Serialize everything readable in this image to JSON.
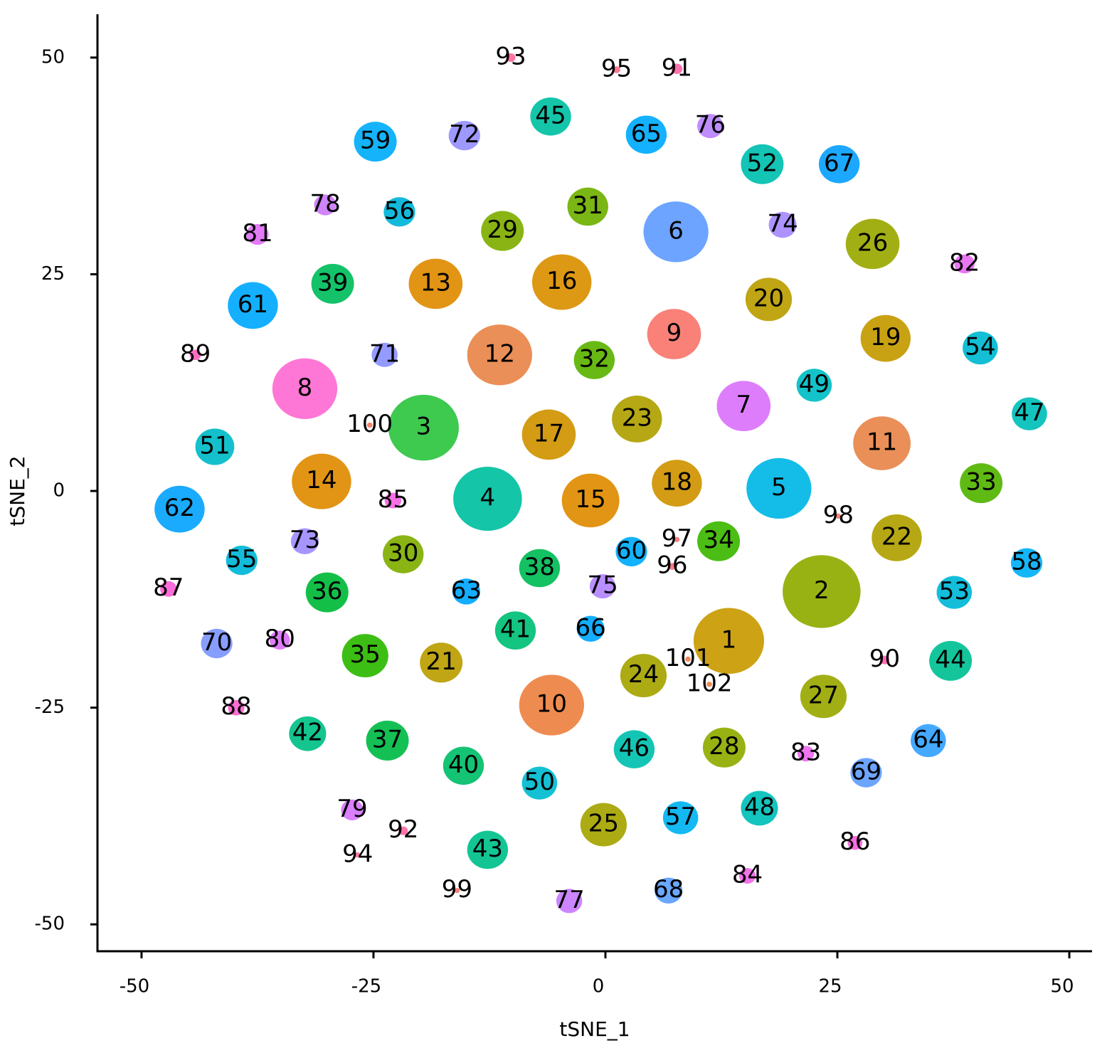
{
  "chart_data": {
    "type": "scatter",
    "x_label": "tSNE_1",
    "y_label": "tSNE_2",
    "xlim": [
      -54.75,
      52.45
    ],
    "ylim": [
      -53.1,
      55
    ],
    "xticks": [
      -50,
      -25,
      0,
      25,
      50
    ],
    "yticks": [
      -50,
      -25,
      0,
      25,
      50
    ],
    "series": [
      {
        "name": "1",
        "color": "#c99a00",
        "x": 13.3,
        "y": -17.3,
        "size": 3.8
      },
      {
        "name": "2",
        "color": "#8fab00",
        "x": 23.3,
        "y": -11.6,
        "size": 4.2
      },
      {
        "name": "3",
        "color": "#2ec440",
        "x": -19.6,
        "y": 7.3,
        "size": 3.8
      },
      {
        "name": "4",
        "color": "#00c0a0",
        "x": -12.7,
        "y": -0.9,
        "size": 3.7
      },
      {
        "name": "5",
        "color": "#00b7e5",
        "x": 18.7,
        "y": 0.3,
        "size": 3.5
      },
      {
        "name": "6",
        "color": "#619cff",
        "x": 7.6,
        "y": 29.9,
        "size": 3.5
      },
      {
        "name": "7",
        "color": "#db72fb",
        "x": 14.9,
        "y": 9.8,
        "size": 2.9
      },
      {
        "name": "8",
        "color": "#ff6bd2",
        "x": -32.4,
        "y": 11.8,
        "size": 3.5
      },
      {
        "name": "9",
        "color": "#f8766d",
        "x": 7.4,
        "y": 18.1,
        "size": 2.9
      },
      {
        "name": "10",
        "color": "#ed8141",
        "x": -5.8,
        "y": -24.7,
        "size": 3.5
      },
      {
        "name": "11",
        "color": "#e8854a",
        "x": 29.8,
        "y": 5.5,
        "size": 3.1
      },
      {
        "name": "12",
        "color": "#e8854a",
        "x": -11.4,
        "y": 15.7,
        "size": 3.5
      },
      {
        "name": "13",
        "color": "#e08b00",
        "x": -18.3,
        "y": 23.9,
        "size": 2.9
      },
      {
        "name": "14",
        "color": "#e08b00",
        "x": -30.6,
        "y": 1.1,
        "size": 3.2
      },
      {
        "name": "15",
        "color": "#e08b00",
        "x": -1.6,
        "y": -1.1,
        "size": 3.1
      },
      {
        "name": "16",
        "color": "#da8f00",
        "x": -4.7,
        "y": 24.1,
        "size": 3.2
      },
      {
        "name": "17",
        "color": "#cf9400",
        "x": -6.1,
        "y": 6.5,
        "size": 2.9
      },
      {
        "name": "18",
        "color": "#cf9400",
        "x": 7.7,
        "y": 0.9,
        "size": 2.7
      },
      {
        "name": "19",
        "color": "#c49a00",
        "x": 30.2,
        "y": 17.6,
        "size": 2.7
      },
      {
        "name": "20",
        "color": "#bb9d00",
        "x": 17.6,
        "y": 22.1,
        "size": 2.5
      },
      {
        "name": "21",
        "color": "#bb9d00",
        "x": -17.7,
        "y": -19.8,
        "size": 2.3
      },
      {
        "name": "22",
        "color": "#b0a100",
        "x": 31.4,
        "y": -5.4,
        "size": 2.7
      },
      {
        "name": "23",
        "color": "#b0a100",
        "x": 3.4,
        "y": 8.3,
        "size": 2.7
      },
      {
        "name": "24",
        "color": "#a5a400",
        "x": 4.1,
        "y": -21.3,
        "size": 2.5
      },
      {
        "name": "25",
        "color": "#a5a400",
        "x": -0.2,
        "y": -38.5,
        "size": 2.5
      },
      {
        "name": "26",
        "color": "#9aa800",
        "x": 28.8,
        "y": 28.5,
        "size": 2.9
      },
      {
        "name": "27",
        "color": "#9aa800",
        "x": 23.5,
        "y": -23.7,
        "size": 2.5
      },
      {
        "name": "28",
        "color": "#8fab00",
        "x": 12.8,
        "y": -29.6,
        "size": 2.3
      },
      {
        "name": "29",
        "color": "#7fae00",
        "x": -11.1,
        "y": 30.0,
        "size": 2.3
      },
      {
        "name": "30",
        "color": "#7fae00",
        "x": -21.8,
        "y": -7.3,
        "size": 2.2
      },
      {
        "name": "31",
        "color": "#6fb000",
        "x": -1.9,
        "y": 32.8,
        "size": 2.2
      },
      {
        "name": "32",
        "color": "#5bb300",
        "x": -1.2,
        "y": 15.1,
        "size": 2.2
      },
      {
        "name": "33",
        "color": "#53b400",
        "x": 40.5,
        "y": 0.9,
        "size": 2.3
      },
      {
        "name": "34",
        "color": "#3cb700",
        "x": 12.2,
        "y": -5.8,
        "size": 2.3
      },
      {
        "name": "35",
        "color": "#2cb900",
        "x": -25.9,
        "y": -19.0,
        "size": 2.5
      },
      {
        "name": "36",
        "color": "#00ba38",
        "x": -30.0,
        "y": -11.7,
        "size": 2.3
      },
      {
        "name": "37",
        "color": "#00bb45",
        "x": -23.5,
        "y": -28.8,
        "size": 2.3
      },
      {
        "name": "38",
        "color": "#00bc56",
        "x": -7.1,
        "y": -8.9,
        "size": 2.2
      },
      {
        "name": "39",
        "color": "#00bd5c",
        "x": -29.4,
        "y": 23.9,
        "size": 2.3
      },
      {
        "name": "40",
        "color": "#00be67",
        "x": -15.3,
        "y": -31.7,
        "size": 2.2
      },
      {
        "name": "41",
        "color": "#00bf76",
        "x": -9.7,
        "y": -16.1,
        "size": 2.2
      },
      {
        "name": "42",
        "color": "#00c086",
        "x": -32.1,
        "y": -28.0,
        "size": 2.0
      },
      {
        "name": "43",
        "color": "#00c08b",
        "x": -12.7,
        "y": -41.4,
        "size": 2.2
      },
      {
        "name": "44",
        "color": "#00c094",
        "x": 37.2,
        "y": -19.6,
        "size": 2.3
      },
      {
        "name": "45",
        "color": "#00c0a3",
        "x": -5.9,
        "y": 43.2,
        "size": 2.2
      },
      {
        "name": "46",
        "color": "#00c0af",
        "x": 3.1,
        "y": -29.8,
        "size": 2.2
      },
      {
        "name": "47",
        "color": "#00bfb8",
        "x": 45.7,
        "y": 8.9,
        "size": 1.9
      },
      {
        "name": "48",
        "color": "#00bfb8",
        "x": 16.6,
        "y": -36.6,
        "size": 2.0
      },
      {
        "name": "49",
        "color": "#00bdc4",
        "x": 22.5,
        "y": 12.2,
        "size": 1.9
      },
      {
        "name": "50",
        "color": "#00bcd0",
        "x": -7.1,
        "y": -33.7,
        "size": 1.9
      },
      {
        "name": "51",
        "color": "#00bbc8",
        "x": -42.1,
        "y": 5.1,
        "size": 2.1
      },
      {
        "name": "52",
        "color": "#00bfaf",
        "x": 16.9,
        "y": 37.7,
        "size": 2.3
      },
      {
        "name": "53",
        "color": "#00b8d8",
        "x": 37.6,
        "y": -11.7,
        "size": 1.9
      },
      {
        "name": "54",
        "color": "#00b9d0",
        "x": 40.4,
        "y": 16.5,
        "size": 1.9
      },
      {
        "name": "55",
        "color": "#00b6d8",
        "x": -39.2,
        "y": -8.0,
        "size": 1.7
      },
      {
        "name": "56",
        "color": "#00b4d8",
        "x": -22.2,
        "y": 32.2,
        "size": 1.7
      },
      {
        "name": "57",
        "color": "#00b3f2",
        "x": 8.1,
        "y": -37.7,
        "size": 1.9
      },
      {
        "name": "58",
        "color": "#00b0f6",
        "x": 45.4,
        "y": -8.3,
        "size": 1.7
      },
      {
        "name": "59",
        "color": "#00adfa",
        "x": -24.8,
        "y": 40.3,
        "size": 2.3
      },
      {
        "name": "60",
        "color": "#00abfd",
        "x": 2.8,
        "y": -7.0,
        "size": 1.7
      },
      {
        "name": "61",
        "color": "#00a9ff",
        "x": -38.0,
        "y": 21.4,
        "size": 2.7
      },
      {
        "name": "62",
        "color": "#06a4ff",
        "x": -45.9,
        "y": -2.1,
        "size": 2.7
      },
      {
        "name": "63",
        "color": "#00a6ff",
        "x": -15.0,
        "y": -11.6,
        "size": 1.5
      },
      {
        "name": "64",
        "color": "#35a2ff",
        "x": 34.8,
        "y": -28.8,
        "size": 1.9
      },
      {
        "name": "65",
        "color": "#00aaff",
        "x": 4.4,
        "y": 41.1,
        "size": 2.2
      },
      {
        "name": "66",
        "color": "#00a6ff",
        "x": -1.6,
        "y": -15.9,
        "size": 1.5
      },
      {
        "name": "67",
        "color": "#0aa1ff",
        "x": 25.2,
        "y": 37.7,
        "size": 2.2
      },
      {
        "name": "68",
        "color": "#5da0ff",
        "x": 6.8,
        "y": -46.1,
        "size": 1.5
      },
      {
        "name": "69",
        "color": "#619cff",
        "x": 28.1,
        "y": -32.5,
        "size": 1.7
      },
      {
        "name": "70",
        "color": "#7d96ff",
        "x": -41.9,
        "y": -17.6,
        "size": 1.7
      },
      {
        "name": "71",
        "color": "#8b93ff",
        "x": -23.8,
        "y": 15.7,
        "size": 1.4
      },
      {
        "name": "72",
        "color": "#9590ff",
        "x": -15.2,
        "y": 41.0,
        "size": 1.7
      },
      {
        "name": "73",
        "color": "#a08cff",
        "x": -32.4,
        "y": -5.8,
        "size": 1.5
      },
      {
        "name": "74",
        "color": "#a58aff",
        "x": 19.1,
        "y": 30.7,
        "size": 1.5
      },
      {
        "name": "75",
        "color": "#b385ff",
        "x": -0.3,
        "y": -11.0,
        "size": 1.4
      },
      {
        "name": "76",
        "color": "#b983ff",
        "x": 11.3,
        "y": 42.1,
        "size": 1.4
      },
      {
        "name": "77",
        "color": "#c77cff",
        "x": -3.9,
        "y": -47.3,
        "size": 1.4
      },
      {
        "name": "78",
        "color": "#cc79f8",
        "x": -30.2,
        "y": 33.0,
        "size": 1.2
      },
      {
        "name": "79",
        "color": "#d774fd",
        "x": -27.3,
        "y": -36.8,
        "size": 1.2
      },
      {
        "name": "80",
        "color": "#dc71fa",
        "x": -35.1,
        "y": -17.2,
        "size": 1.1
      },
      {
        "name": "81",
        "color": "#e16ff5",
        "x": -37.5,
        "y": 29.6,
        "size": 1.2
      },
      {
        "name": "82",
        "color": "#e76bf3",
        "x": 38.7,
        "y": 26.2,
        "size": 1.1
      },
      {
        "name": "83",
        "color": "#ec69ef",
        "x": 21.6,
        "y": -30.3,
        "size": 0.9
      },
      {
        "name": "84",
        "color": "#f166e8",
        "x": 15.3,
        "y": -44.4,
        "size": 0.9
      },
      {
        "name": "85",
        "color": "#f564e3",
        "x": -22.9,
        "y": -1.1,
        "size": 0.9
      },
      {
        "name": "86",
        "color": "#f862dd",
        "x": 26.9,
        "y": -40.6,
        "size": 0.8
      },
      {
        "name": "87",
        "color": "#fb61d7",
        "x": -47.1,
        "y": -11.3,
        "size": 0.9
      },
      {
        "name": "88",
        "color": "#fd61d1",
        "x": -39.8,
        "y": -25.0,
        "size": 0.9
      },
      {
        "name": "89",
        "color": "#ff62bc",
        "x": -44.2,
        "y": 15.7,
        "size": 0.6
      },
      {
        "name": "90",
        "color": "#ff64b0",
        "x": 30.1,
        "y": -19.5,
        "size": 0.5
      },
      {
        "name": "91",
        "color": "#ff66a8",
        "x": 7.7,
        "y": 48.7,
        "size": 0.6
      },
      {
        "name": "92",
        "color": "#ff67a4",
        "x": -21.8,
        "y": -39.2,
        "size": 0.5
      },
      {
        "name": "93",
        "color": "#ff689f",
        "x": -10.2,
        "y": 50.0,
        "size": 0.5
      },
      {
        "name": "94",
        "color": "#ff6a98",
        "x": -26.7,
        "y": -42.0,
        "size": 0.3
      },
      {
        "name": "95",
        "color": "#fe6e8a",
        "x": 1.2,
        "y": 48.6,
        "size": 0.4
      },
      {
        "name": "96",
        "color": "#fc717f",
        "x": 7.2,
        "y": -8.7,
        "size": 0.4
      },
      {
        "name": "97",
        "color": "#fa7476",
        "x": 7.7,
        "y": -5.6,
        "size": 0.3
      },
      {
        "name": "98",
        "color": "#f8766d",
        "x": 25.1,
        "y": -2.9,
        "size": 0.3
      },
      {
        "name": "99",
        "color": "#f8766d",
        "x": -16.0,
        "y": -46.1,
        "size": 0.3
      },
      {
        "name": "100",
        "color": "#f47a5c",
        "x": -25.4,
        "y": 7.6,
        "size": 0.3
      },
      {
        "name": "101",
        "color": "#f07e50",
        "x": 8.9,
        "y": -19.4,
        "size": 0.3
      },
      {
        "name": "102",
        "color": "#ec8145",
        "x": 11.2,
        "y": -22.3,
        "size": 0.3
      }
    ]
  }
}
